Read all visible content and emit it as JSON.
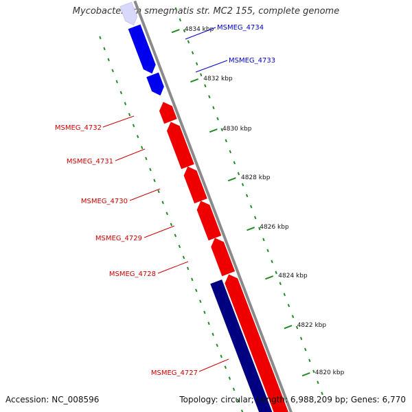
{
  "title": "Mycobacterium smegmatis str. MC2 155, complete genome",
  "footer": {
    "accession": "Accession: NC_008596",
    "summary": "Topology: circular; Length: 6,988,209 bp; Genes: 6,770"
  },
  "colors": {
    "backbone": "#8a8a8a",
    "forward_gene": "#0000ee",
    "reverse_gene": "#ee0000",
    "other_gene": "#000080",
    "gc_ticks": "#228b22",
    "forward_label": "#0000cc",
    "reverse_label": "#cc0000",
    "scale_label": "#111111"
  },
  "scale_labels": [
    "4834 kbp",
    "4832 kbp",
    "4830 kbp",
    "4828 kbp",
    "4826 kbp",
    "4824 kbp",
    "4822 kbp",
    "4820 kbp"
  ],
  "genes": [
    {
      "label": "MSMEG_4734",
      "strand": "forward",
      "color_key": "forward_gene"
    },
    {
      "label": "MSMEG_4733",
      "strand": "forward",
      "color_key": "forward_gene"
    },
    {
      "label": "MSMEG_4732",
      "strand": "reverse",
      "color_key": "reverse_gene"
    },
    {
      "label": "MSMEG_4731",
      "strand": "reverse",
      "color_key": "reverse_gene"
    },
    {
      "label": "MSMEG_4730",
      "strand": "reverse",
      "color_key": "reverse_gene"
    },
    {
      "label": "MSMEG_4729",
      "strand": "reverse",
      "color_key": "reverse_gene"
    },
    {
      "label": "MSMEG_4728",
      "strand": "reverse",
      "color_key": "reverse_gene"
    },
    {
      "label": "MSMEG_4727",
      "strand": "reverse",
      "color_key": "reverse_gene"
    }
  ]
}
